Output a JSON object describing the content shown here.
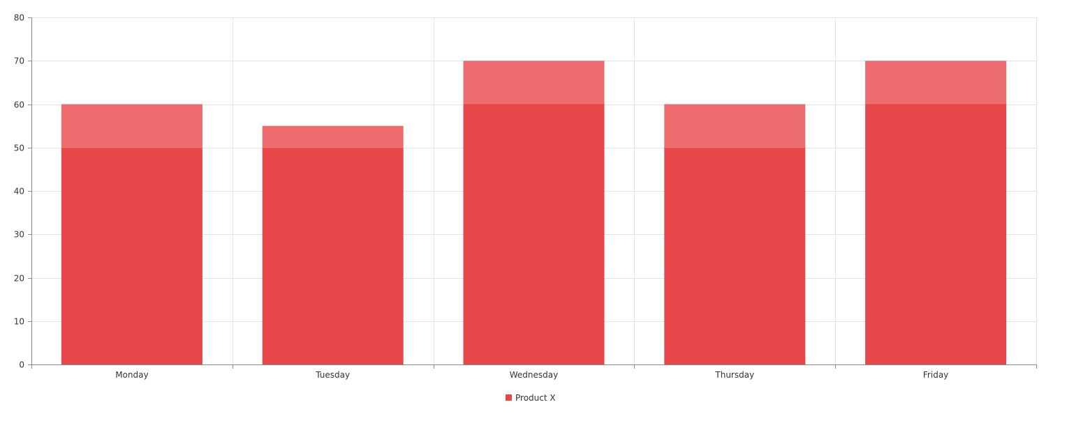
{
  "chart_data": {
    "type": "bar",
    "categories": [
      "Monday",
      "Tuesday",
      "Wednesday",
      "Thursday",
      "Friday"
    ],
    "series": [
      {
        "name": "Product X",
        "values": [
          60,
          55,
          70,
          60,
          70
        ],
        "color": "#e8474a"
      }
    ],
    "highlight_color": "#ec6b6d",
    "highlight_threshold": [
      50,
      50,
      60,
      50,
      60
    ],
    "ylim": [
      0,
      80
    ],
    "yticks": [
      0,
      10,
      20,
      30,
      40,
      50,
      60,
      70,
      80
    ],
    "ytick_labels": [
      "0",
      "10",
      "20",
      "30",
      "40",
      "50",
      "60",
      "70",
      "80"
    ],
    "title": "",
    "xlabel": "",
    "ylabel": "",
    "grid": true,
    "legend_position": "bottom-center"
  },
  "legend": {
    "label": "Product X"
  }
}
